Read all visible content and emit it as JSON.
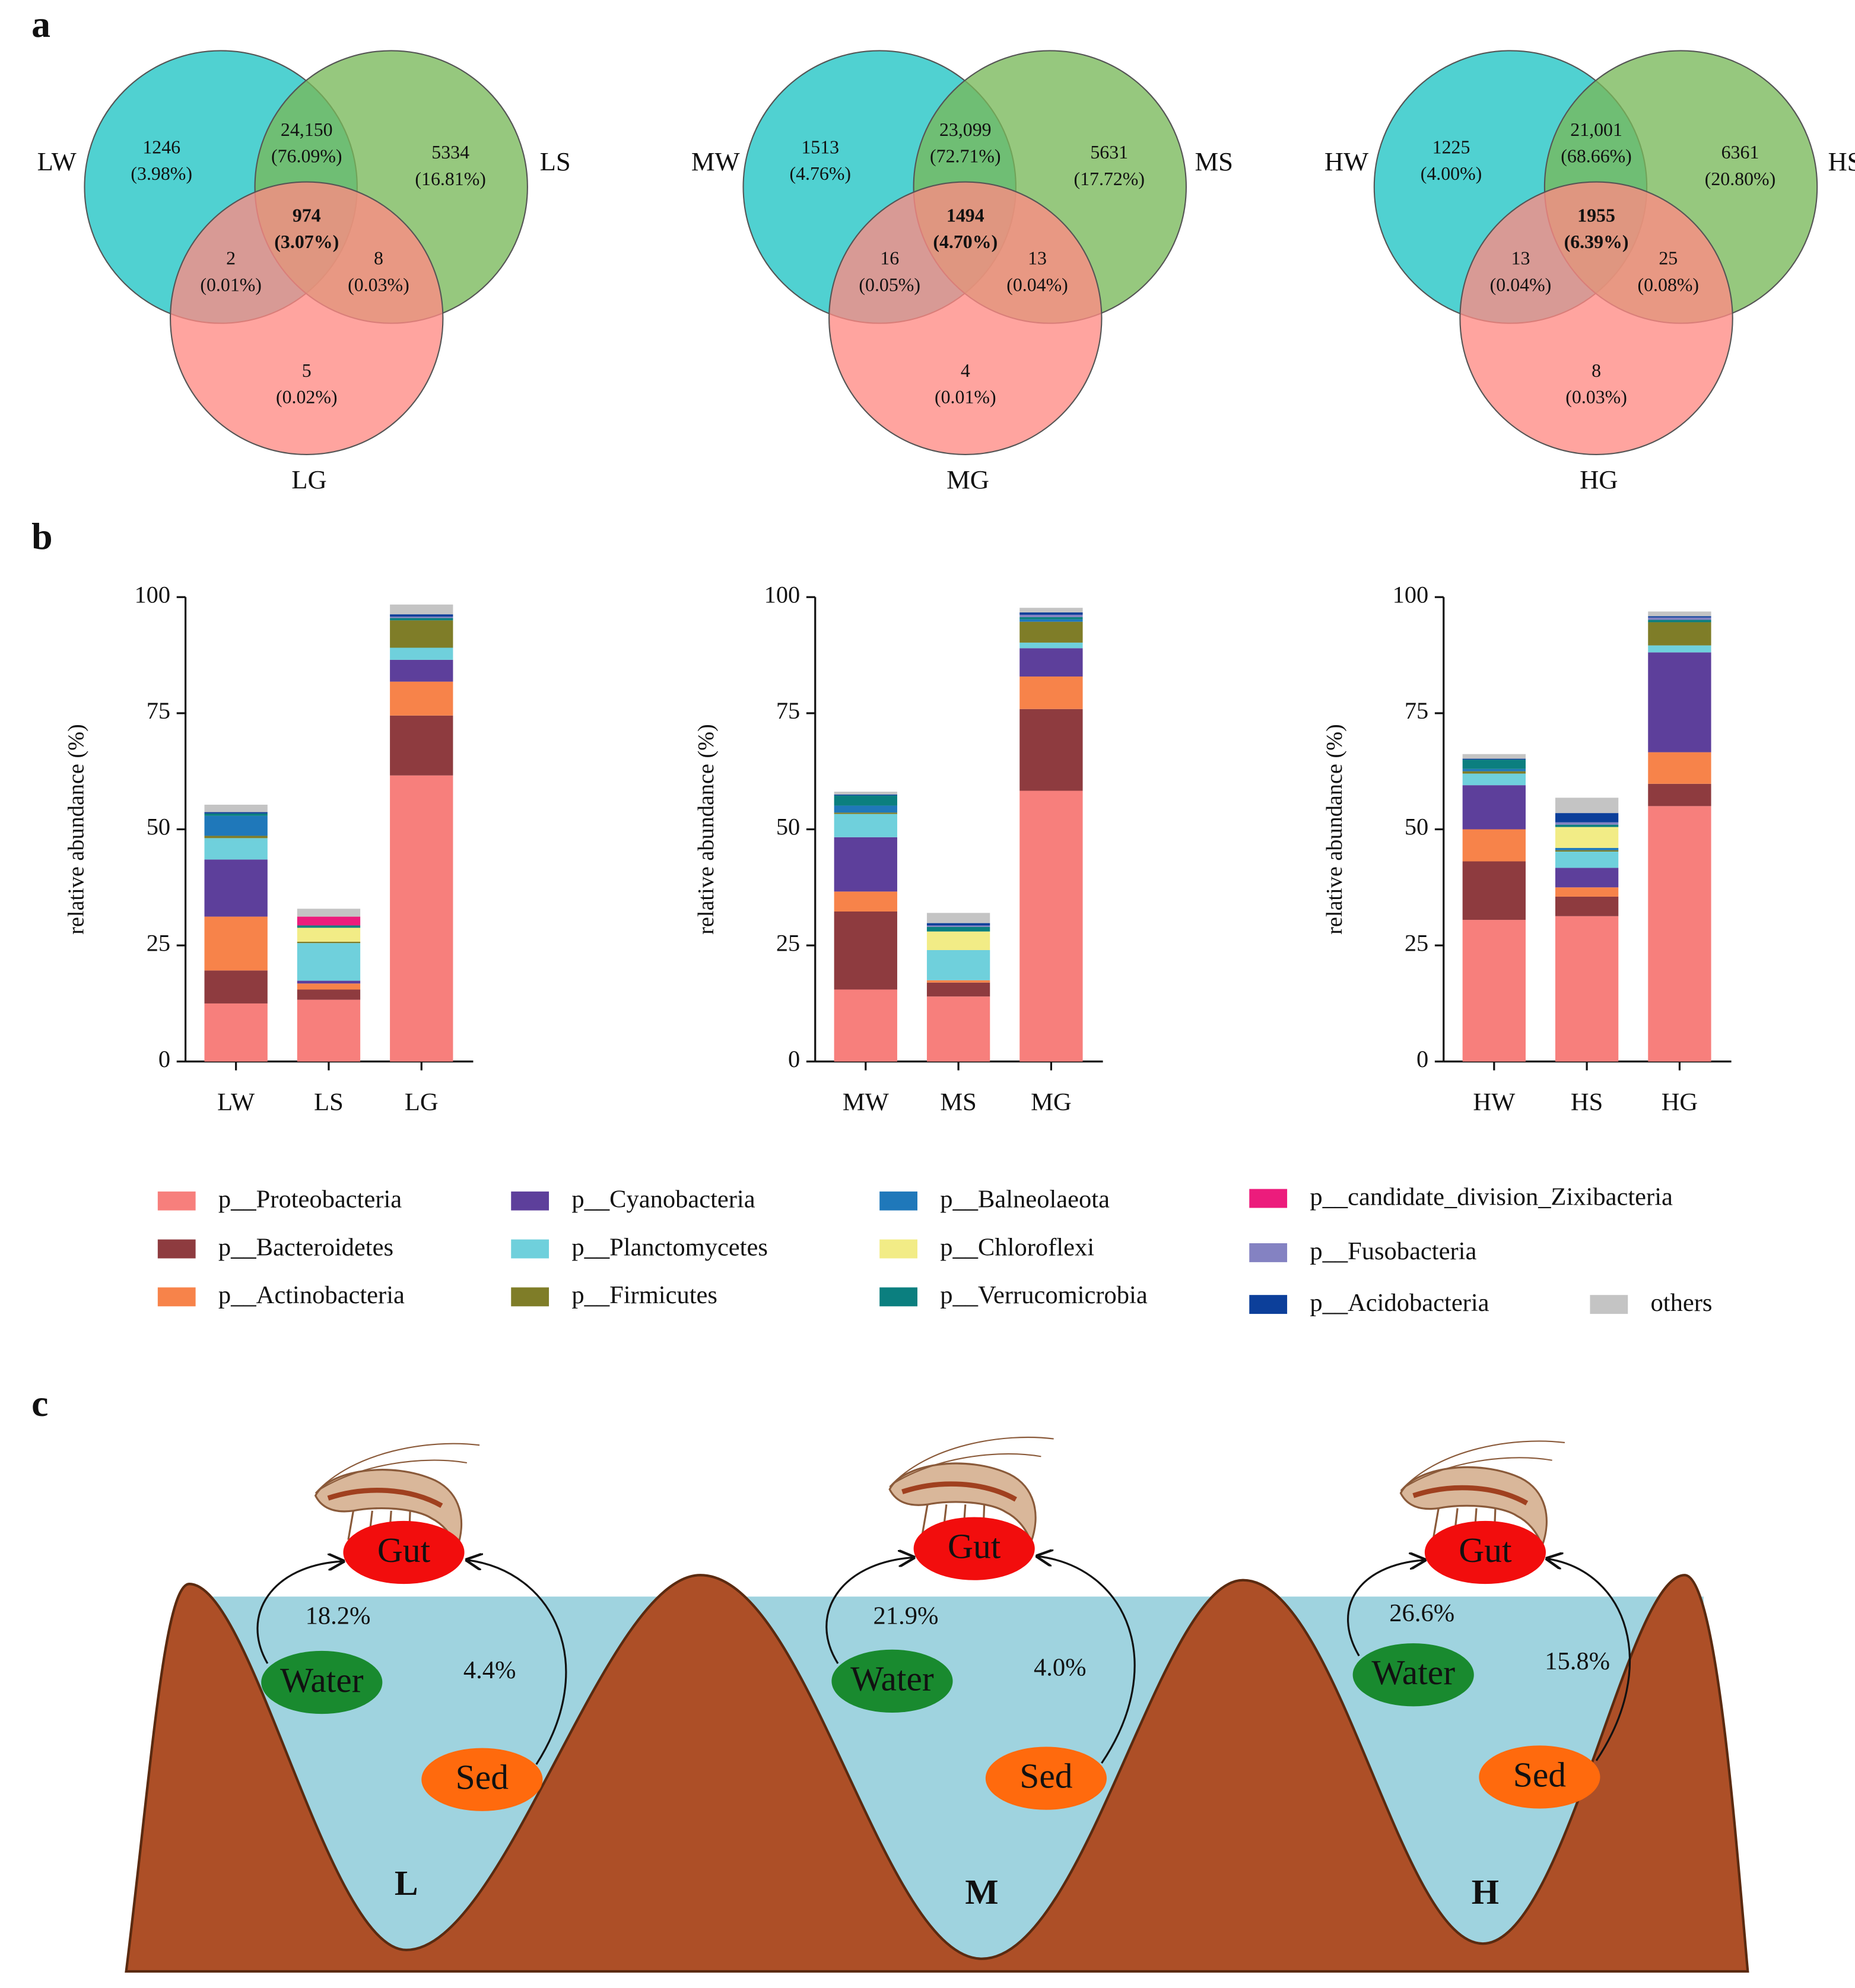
{
  "panel_labels": [
    "a",
    "b",
    "c"
  ],
  "chart_data": [
    {
      "type": "venn",
      "sets": [
        "LW",
        "LS",
        "LG"
      ],
      "colors": [
        "#1fc4c4",
        "#79b95a",
        "#ff8a84"
      ],
      "regions": [
        {
          "count": 1246,
          "percent": {
            "value": 3.98,
            "label": "(3.98%)"
          }
        },
        {
          "count": 5334,
          "percent": {
            "value": 16.81,
            "label": "(16.81%)"
          }
        },
        {
          "count": 5,
          "percent": {
            "value": 0.02,
            "label": "(0.02%)"
          }
        },
        {
          "count": {
            "value": 24150,
            "label": "24,150"
          },
          "percent": {
            "value": 76.09,
            "label": "(76.09%)"
          }
        },
        {
          "count": 2,
          "percent": {
            "value": 0.01,
            "label": "(0.01%)"
          }
        },
        {
          "count": 8,
          "percent": {
            "value": 0.03,
            "label": "(0.03%)"
          }
        },
        {
          "count": 974,
          "percent": {
            "value": 3.07,
            "label": "(3.07%)"
          }
        }
      ]
    },
    {
      "type": "venn",
      "sets": [
        "MW",
        "MS",
        "MG"
      ],
      "colors": [
        "#1fc4c4",
        "#79b95a",
        "#ff8a84"
      ],
      "regions": [
        {
          "count": 1513,
          "percent": {
            "value": 4.76,
            "label": "(4.76%)"
          }
        },
        {
          "count": 5631,
          "percent": {
            "value": 17.72,
            "label": "(17.72%)"
          }
        },
        {
          "count": 4,
          "percent": {
            "value": 0.01,
            "label": "(0.01%)"
          }
        },
        {
          "count": {
            "value": 23099,
            "label": "23,099"
          },
          "percent": {
            "value": 72.71,
            "label": "(72.71%)"
          }
        },
        {
          "count": 16,
          "percent": {
            "value": 0.05,
            "label": "(0.05%)"
          }
        },
        {
          "count": 13,
          "percent": {
            "value": 0.04,
            "label": "(0.04%)"
          }
        },
        {
          "count": 1494,
          "percent": {
            "value": 4.7,
            "label": "(4.70%)"
          }
        }
      ]
    },
    {
      "type": "venn",
      "sets": [
        "HW",
        "HS",
        "HG"
      ],
      "colors": [
        "#1fc4c4",
        "#79b95a",
        "#ff8a84"
      ],
      "regions": [
        {
          "count": 1225,
          "percent": {
            "value": 4.0,
            "label": "(4.00%)"
          }
        },
        {
          "count": 6361,
          "percent": {
            "value": 20.8,
            "label": "(20.80%)"
          }
        },
        {
          "count": 8,
          "percent": {
            "value": 0.03,
            "label": "(0.03%)"
          }
        },
        {
          "count": {
            "value": 21001,
            "label": "21,001"
          },
          "percent": {
            "value": 68.66,
            "label": "(68.66%)"
          }
        },
        {
          "count": 13,
          "percent": {
            "value": 0.04,
            "label": "(0.04%)"
          }
        },
        {
          "count": 25,
          "percent": {
            "value": 0.08,
            "label": "(0.08%)"
          }
        },
        {
          "count": 1955,
          "percent": {
            "value": 6.39,
            "label": "(6.39%)"
          }
        }
      ]
    },
    {
      "type": "bar",
      "stacked": true,
      "y_label": "relative abundance (%)",
      "categories": [
        "LW",
        "LS",
        "LG",
        "MW",
        "MS",
        "MG",
        "HW",
        "HS",
        "HG"
      ],
      "ylim": [
        0,
        100
      ],
      "yticks": [
        0,
        25,
        50,
        75,
        100
      ],
      "series": [
        {
          "name": "p__Proteobacteria",
          "color": "#f77f7c",
          "values": [
            12.5,
            13.3,
            61.6,
            15.5,
            14,
            58.3,
            30.5,
            31.3,
            55
          ]
        },
        {
          "name": "p__Bacteroidetes",
          "color": "#8e3b3f",
          "values": [
            7.1,
            2.2,
            12.9,
            16.8,
            3,
            17.6,
            12.6,
            4.2,
            4.8
          ]
        },
        {
          "name": "p__Actinobacteria",
          "color": "#f7834a",
          "values": [
            11.6,
            1.3,
            7.3,
            4.3,
            0.5,
            7,
            6.9,
            2,
            6.8
          ]
        },
        {
          "name": "p__Cyanobacteria",
          "color": "#5d3f9b",
          "values": [
            12.3,
            0.6,
            4.7,
            11.7,
            0,
            6.1,
            9.5,
            4.2,
            21.5
          ]
        },
        {
          "name": "p__Planctomycetes",
          "color": "#6fd0dc",
          "values": [
            4.6,
            8.1,
            2.6,
            5,
            6.5,
            1.2,
            2.5,
            3.5,
            1.5
          ]
        },
        {
          "name": "p__Firmicutes",
          "color": "#7f7d28",
          "values": [
            0.5,
            0.3,
            5.9,
            0.3,
            0,
            4.5,
            0.5,
            0.3,
            5
          ]
        },
        {
          "name": "p__Balneolaeota",
          "color": "#1f78ba",
          "values": [
            4.3,
            0,
            0,
            1.5,
            0,
            0.5,
            0.5,
            0.5,
            0
          ]
        },
        {
          "name": "p__Chloroflexi",
          "color": "#f2ec86",
          "values": [
            0,
            3,
            0,
            0,
            4,
            0,
            0,
            4.5,
            0
          ]
        },
        {
          "name": "p__Verrucomicrobia",
          "color": "#0b7f7f",
          "values": [
            0.5,
            0.5,
            0.5,
            2.2,
            1,
            0.5,
            2,
            0.5,
            0.5
          ]
        },
        {
          "name": "p__candidate_division_Zixibacteria",
          "color": "#ec1c7c",
          "values": [
            0,
            1.9,
            0,
            0,
            0,
            0,
            0,
            0,
            0
          ]
        },
        {
          "name": "p__Fusobacteria",
          "color": "#8482c2",
          "values": [
            0,
            0,
            0.3,
            0,
            0.3,
            0.5,
            0,
            0.5,
            0.5
          ]
        },
        {
          "name": "p__Acidobacteria",
          "color": "#0c3f9a",
          "values": [
            0.3,
            0,
            0.5,
            0.2,
            0.5,
            0.5,
            0.2,
            2,
            0.3
          ]
        },
        {
          "name": "others",
          "color": "#c4c4c4",
          "values": [
            1.6,
            1.7,
            2.1,
            0.6,
            2.2,
            1,
            1,
            3.3,
            1
          ]
        }
      ]
    }
  ],
  "diagram": {
    "sites": [
      {
        "name": "L",
        "gut": "Gut",
        "water": "Water",
        "sed": "Sed",
        "water_to_gut": "18.2%",
        "sed_to_gut": "4.4%"
      },
      {
        "name": "M",
        "gut": "Gut",
        "water": "Water",
        "sed": "Sed",
        "water_to_gut": "21.9%",
        "sed_to_gut": "4.0%"
      },
      {
        "name": "H",
        "gut": "Gut",
        "water": "Water",
        "sed": "Sed",
        "water_to_gut": "26.6%",
        "sed_to_gut": "15.8%"
      }
    ]
  }
}
